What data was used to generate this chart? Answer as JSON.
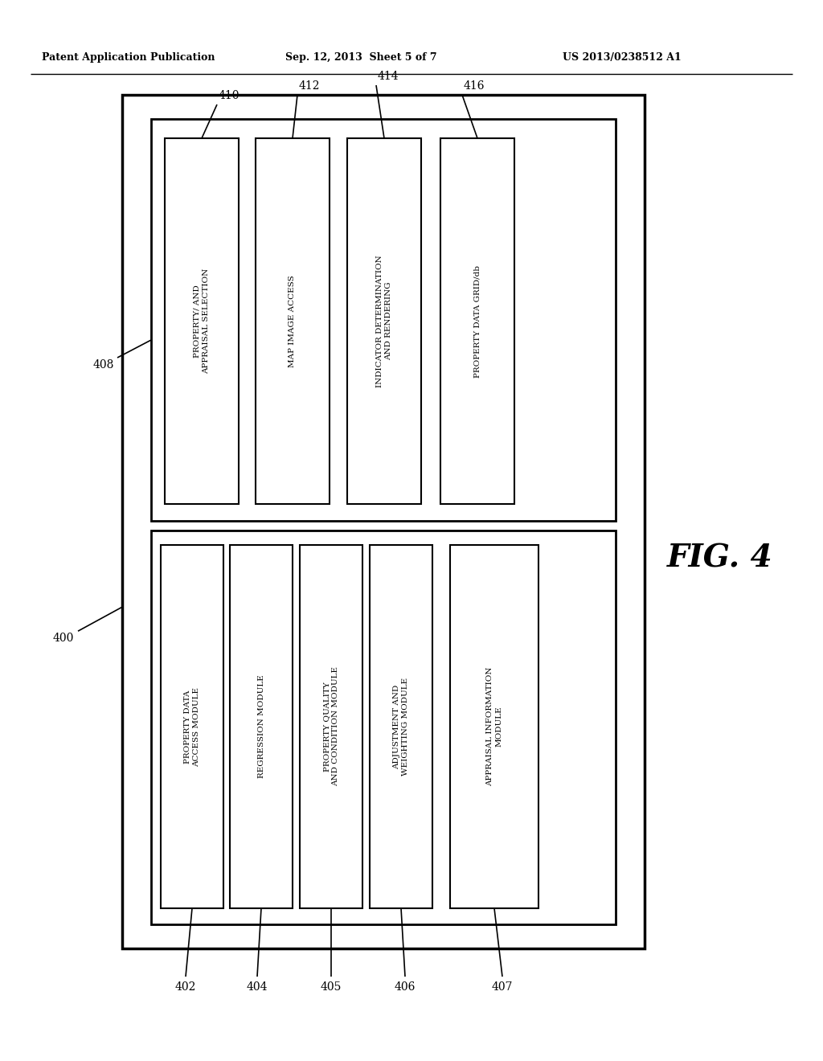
{
  "bg_color": "#ffffff",
  "header_left": "Patent Application Publication",
  "header_mid": "Sep. 12, 2013  Sheet 5 of 7",
  "header_right": "US 2013/0238512 A1",
  "fig_label": "FIG. 4",
  "top_modules": [
    {
      "label": "PROPERTY/ AND\nAPPRAISAL SELECTION",
      "ref": "410"
    },
    {
      "label": "MAP IMAGE ACCESS",
      "ref": "412"
    },
    {
      "label": "INDICATOR DETERMINATION\nAND RENDERING",
      "ref": "414"
    },
    {
      "label": "PROPERTY DATA GRID/db",
      "ref": "416"
    }
  ],
  "bottom_modules": [
    {
      "label": "PROPERTY DATA\nACCESS MODULE",
      "ref": "402"
    },
    {
      "label": "REGRESSION MODULE",
      "ref": "404"
    },
    {
      "label": "PROPERTY QUALITY\nAND CONDITION MODULE",
      "ref": "405"
    },
    {
      "label": "ADJUSTMENT AND\nWEIGHTING MODULE",
      "ref": "406"
    },
    {
      "label": "APPRAISAL INFORMATION\nMODULE",
      "ref": "407"
    }
  ]
}
